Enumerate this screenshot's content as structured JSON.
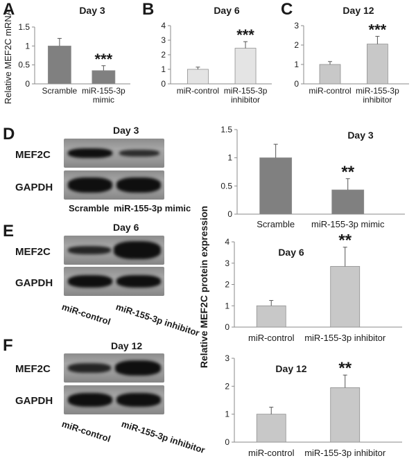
{
  "panels": {
    "a": {
      "letter": "A"
    },
    "b": {
      "letter": "B"
    },
    "c": {
      "letter": "C"
    },
    "d": {
      "letter": "D"
    },
    "e": {
      "letter": "E"
    },
    "f": {
      "letter": "F"
    }
  },
  "mrna_ylabel": "Relative MEF2C mRNA",
  "protein_ylabel": "Relative  MEF2C protein expression",
  "blots": {
    "d": {
      "title": "Day 3",
      "row1": "MEF2C",
      "row2": "GAPDH",
      "lane1": "Scramble",
      "lane2": "miR-155-3p mimic"
    },
    "e": {
      "title": "Day 6",
      "row1": "MEF2C",
      "row2": "GAPDH",
      "lane1": "miR-control",
      "lane2": "miR-155-3p inhibitor"
    },
    "f": {
      "title": "Day 12",
      "row1": "MEF2C",
      "row2": "GAPDH",
      "lane1": "miR-control",
      "lane2": "miR-155-3p inhibitor"
    }
  },
  "colors": {
    "dark_bar": "#808080",
    "light_bar": "#c8c8c8",
    "lighter_bar": "#e4e4e4",
    "axis": "#8a8a8a",
    "text": "#1a1a1a"
  },
  "chart_data": [
    {
      "id": "A",
      "type": "bar",
      "title": "Day 3",
      "categories": [
        "Scramble",
        "miR-155-3p\nmimic"
      ],
      "values": [
        1.0,
        0.35
      ],
      "errors": [
        0.2,
        0.13
      ],
      "significance": [
        "",
        "***"
      ],
      "ylim": [
        0,
        1.5
      ],
      "yticks": [
        0,
        0.5,
        1,
        1.5
      ],
      "ytick_labels": [
        "0",
        "0.5",
        "1",
        "1.5"
      ],
      "ylabel": "Relative MEF2C mRNA",
      "bar_colors": [
        "#808080",
        "#808080"
      ]
    },
    {
      "id": "B",
      "type": "bar",
      "title": "Day 6",
      "categories": [
        "miR-control",
        "miR-155-3p\ninhibitor"
      ],
      "values": [
        1.0,
        2.45
      ],
      "errors": [
        0.15,
        0.45
      ],
      "significance": [
        "",
        "***"
      ],
      "ylim": [
        0,
        4
      ],
      "yticks": [
        0,
        1,
        2,
        3,
        4
      ],
      "ytick_labels": [
        "0",
        "1",
        "2",
        "3",
        "4"
      ],
      "ylabel": "",
      "bar_colors": [
        "#e4e4e4",
        "#e4e4e4"
      ]
    },
    {
      "id": "C",
      "type": "bar",
      "title": "Day 12",
      "categories": [
        "miR-control",
        "miR-155-3p\ninhibitor"
      ],
      "values": [
        1.0,
        2.05
      ],
      "errors": [
        0.15,
        0.4
      ],
      "significance": [
        "",
        "***"
      ],
      "ylim": [
        0,
        3
      ],
      "yticks": [
        0,
        1,
        2,
        3
      ],
      "ytick_labels": [
        "0",
        "1",
        "2",
        "3"
      ],
      "ylabel": "",
      "bar_colors": [
        "#c8c8c8",
        "#c8c8c8"
      ]
    },
    {
      "id": "D-chart",
      "type": "bar",
      "title": "Day 3",
      "categories": [
        "Scramble",
        "miR-155-3p  mimic"
      ],
      "values": [
        1.0,
        0.43
      ],
      "errors": [
        0.24,
        0.2
      ],
      "significance": [
        "",
        "**"
      ],
      "ylim": [
        0,
        1.5
      ],
      "yticks": [
        0,
        0.5,
        1,
        1.5
      ],
      "ytick_labels": [
        "0",
        "0.5",
        "1",
        "1.5"
      ],
      "ylabel": "",
      "bar_colors": [
        "#808080",
        "#808080"
      ]
    },
    {
      "id": "E-chart",
      "type": "bar",
      "title": "Day 6",
      "categories": [
        "miR-control",
        "miR-155-3p inhibitor"
      ],
      "values": [
        1.0,
        2.85
      ],
      "errors": [
        0.25,
        0.9
      ],
      "significance": [
        "",
        "**"
      ],
      "ylim": [
        0,
        4
      ],
      "yticks": [
        0,
        1,
        2,
        3,
        4
      ],
      "ytick_labels": [
        "0",
        "1",
        "2",
        "3",
        "4"
      ],
      "ylabel": "",
      "bar_colors": [
        "#c8c8c8",
        "#c8c8c8"
      ]
    },
    {
      "id": "F-chart",
      "type": "bar",
      "title": "Day 12",
      "categories": [
        "miR-control",
        "miR-155-3p inhibitor"
      ],
      "values": [
        1.0,
        1.95
      ],
      "errors": [
        0.25,
        0.45
      ],
      "significance": [
        "",
        "**"
      ],
      "ylim": [
        0,
        3
      ],
      "yticks": [
        0,
        1,
        2,
        3
      ],
      "ytick_labels": [
        "0",
        "1",
        "2",
        "3"
      ],
      "ylabel": "",
      "bar_colors": [
        "#c8c8c8",
        "#c8c8c8"
      ]
    }
  ]
}
